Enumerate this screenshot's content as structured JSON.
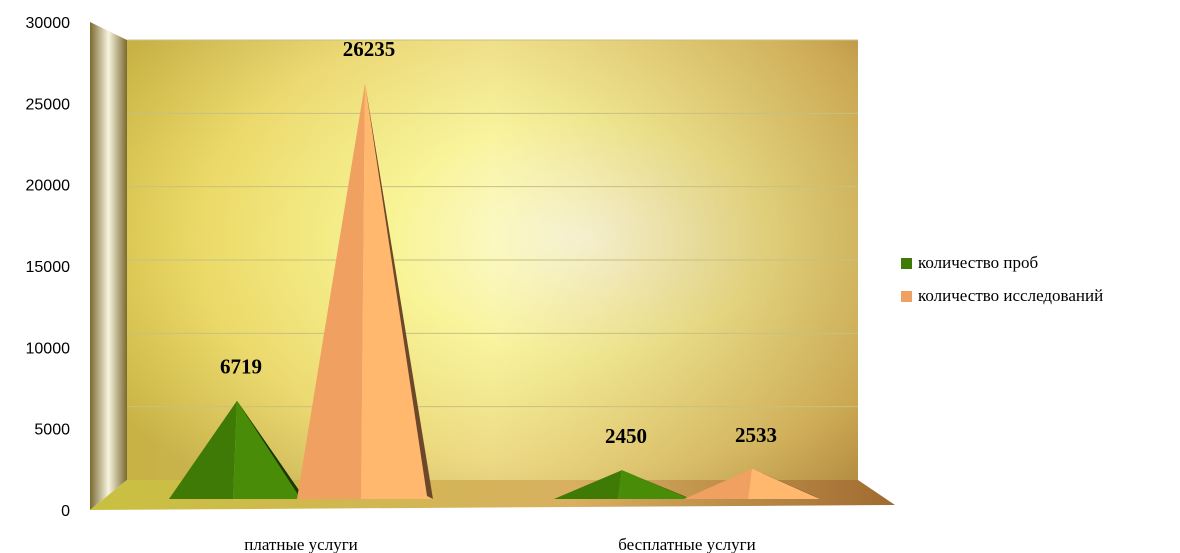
{
  "chart_data": {
    "type": "pyramid",
    "categories": [
      "платные услуги",
      "бесплатные услуги"
    ],
    "series": [
      {
        "name": "количество проб",
        "color": "#3f7a06",
        "values": [
          6719,
          2450
        ]
      },
      {
        "name": "количество исследований",
        "color": "#f0a060",
        "values": [
          26235,
          2533
        ]
      }
    ],
    "ylim": [
      0,
      30000
    ],
    "yticks": [
      0,
      5000,
      10000,
      15000,
      20000,
      25000,
      30000
    ],
    "grid": true,
    "legend": "right"
  }
}
